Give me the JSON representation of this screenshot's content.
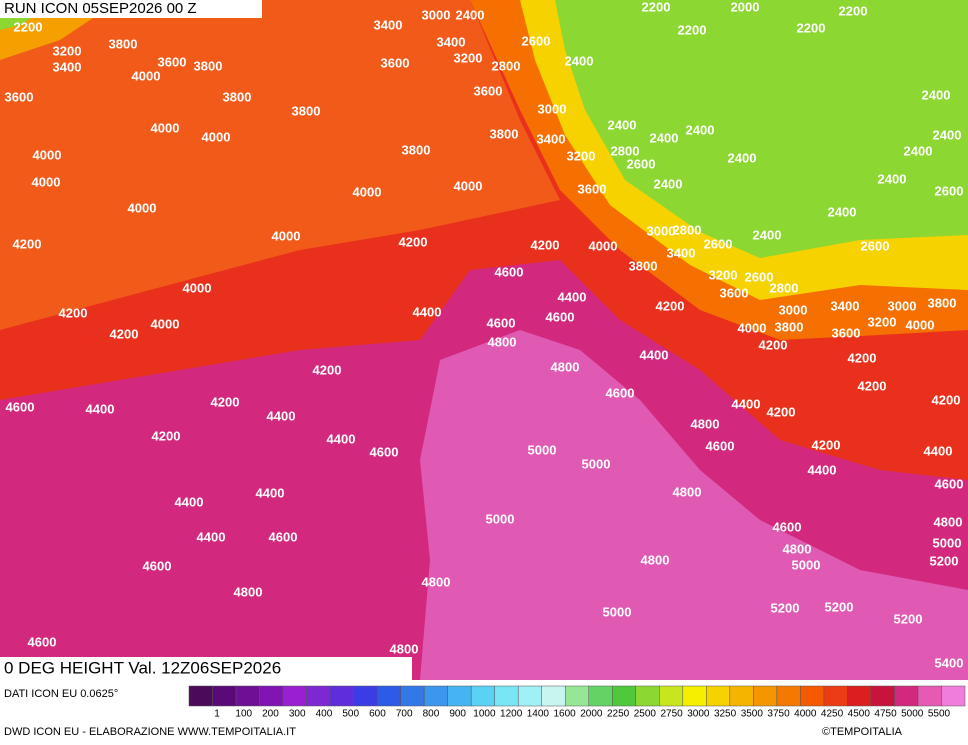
{
  "header": {
    "run": "RUN ICON 05SEP2026 00 Z",
    "field": "0 DEG HEIGHT Val. 12Z06SEP2026",
    "source": "DATI ICON EU 0.0625°",
    "credit": "DWD ICON EU - ELABORAZIONE WWW.TEMPOITALIA.IT",
    "copyright": "©TEMPOITALIA"
  },
  "legend": {
    "labels": [
      "1",
      "100",
      "200",
      "300",
      "400",
      "500",
      "600",
      "700",
      "800",
      "900",
      "1000",
      "1200",
      "1400",
      "1600",
      "2000",
      "2250",
      "2500",
      "2750",
      "3000",
      "3250",
      "3500",
      "3750",
      "4000",
      "4250",
      "4500",
      "4750",
      "5000",
      "5500"
    ],
    "colors": [
      "#4b0a5a",
      "#5a0a78",
      "#6e0f96",
      "#8214b4",
      "#9a1ed2",
      "#7d28d2",
      "#5f2ddc",
      "#3c3ce6",
      "#2d5ae6",
      "#3278e6",
      "#3c96eb",
      "#46b4f0",
      "#5ad2f5",
      "#78e6f5",
      "#a0f0f5",
      "#c8f5f0",
      "#96e696",
      "#64d264",
      "#50c83c",
      "#8cd732",
      "#c8e61e",
      "#f5f000",
      "#f5d200",
      "#f5b400",
      "#f59600",
      "#f57800",
      "#f55a00",
      "#eb3c14",
      "#dc1e1e",
      "#c8143c",
      "#d2287d",
      "#e65ab4",
      "#f07ddc"
    ]
  },
  "contour_labels": [
    "2200",
    "3200",
    "3400",
    "3800",
    "3600",
    "3800",
    "4000",
    "3600",
    "3400",
    "3000",
    "2400",
    "3400",
    "3200",
    "2600",
    "2800",
    "2400",
    "2200",
    "2000",
    "2200",
    "2200",
    "2200",
    "3600",
    "3800",
    "3800",
    "3600",
    "4000",
    "4000",
    "3000",
    "3800",
    "3400",
    "2400",
    "2400",
    "2400",
    "3200",
    "2800",
    "2600",
    "3800",
    "4000",
    "4000",
    "4000",
    "4000",
    "3600",
    "2400",
    "2400",
    "2400",
    "2400",
    "2400",
    "2400",
    "2600",
    "4000",
    "2400",
    "4200",
    "4000",
    "4200",
    "4200",
    "4000",
    "3000",
    "2800",
    "2600",
    "3400",
    "2400",
    "2600",
    "4600",
    "3800",
    "3200",
    "2600",
    "4000",
    "2800",
    "3600",
    "4200",
    "4400",
    "4400",
    "4200",
    "3000",
    "3400",
    "3000",
    "3800",
    "4200",
    "4000",
    "4600",
    "4600",
    "4000",
    "3800",
    "3600",
    "3200",
    "4000",
    "4800",
    "4200",
    "4400",
    "4200",
    "4200",
    "4800",
    "4200",
    "4600",
    "4400",
    "4200",
    "4600",
    "4400",
    "4200",
    "4200",
    "4400",
    "4200",
    "4400",
    "4800",
    "4600",
    "4200",
    "4600",
    "5000",
    "5000",
    "4400",
    "4400",
    "4600",
    "4400",
    "4400",
    "4800",
    "5000",
    "4800",
    "4400",
    "4600",
    "4600",
    "5000",
    "4800",
    "4600",
    "4800",
    "5000",
    "5200",
    "4800",
    "4800",
    "5000",
    "5200",
    "5200",
    "5200",
    "4600",
    "4800",
    "5400"
  ]
}
